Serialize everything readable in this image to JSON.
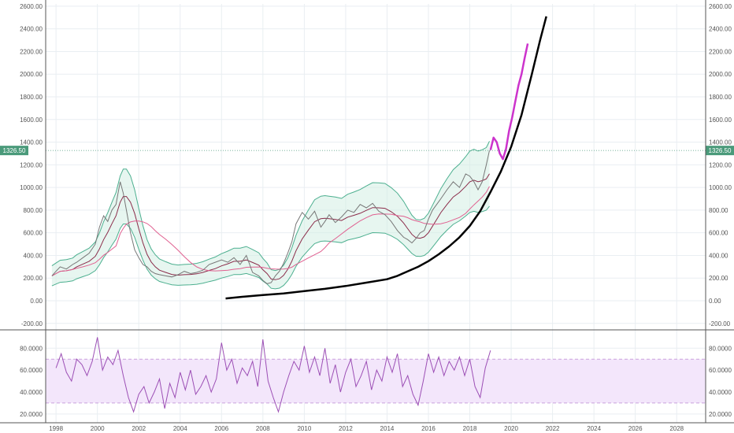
{
  "chart_data": [
    {
      "type": "line",
      "role": "price",
      "xlim": [
        1997.5,
        2029.4
      ],
      "ylim": [
        -250,
        2620
      ],
      "y_ticks": [
        "2600.00",
        "2400.00",
        "2200.00",
        "2000.00",
        "1800.00",
        "1600.00",
        "1400.00",
        "1200.00",
        "1000.00",
        "800.00",
        "600.00",
        "400.00",
        "200.00",
        "0.00",
        "-200.00"
      ],
      "y_tick_values": [
        2600,
        2400,
        2200,
        2000,
        1800,
        1600,
        1400,
        1200,
        1000,
        800,
        600,
        400,
        200,
        0,
        -200
      ],
      "x_ticks": [
        "1998",
        "2000",
        "2002",
        "2004",
        "2006",
        "2008",
        "2010",
        "2012",
        "2014",
        "2016",
        "2018",
        "2020",
        "2022",
        "2024",
        "2026",
        "2028"
      ],
      "x_tick_values": [
        1998,
        2000,
        2002,
        2004,
        2006,
        2008,
        2010,
        2012,
        2014,
        2016,
        2018,
        2020,
        2022,
        2024,
        2026,
        2028
      ],
      "last_price": {
        "label": "1326.50",
        "value": 1326.5
      },
      "grid": true,
      "colors": {
        "price": "#777777",
        "band": "#4caf8f",
        "band_fill": "#d4eee4",
        "ma_fast": "#8b2c4a",
        "ma_slow": "#e06090",
        "trend": "#000000",
        "projection": "#cc33cc",
        "last_price": "#4a9a7a"
      },
      "series": [
        {
          "role": "price",
          "x": [
            1997.8,
            1998.0,
            1998.2,
            1998.5,
            1998.8,
            1999.0,
            1999.3,
            1999.6,
            1999.9,
            2000.1,
            2000.3,
            2000.5,
            2000.7,
            2000.9,
            2001.0,
            2001.1,
            2001.25,
            2001.4,
            2001.6,
            2001.8,
            2002.0,
            2002.2,
            2002.4,
            2002.6,
            2002.8,
            2003.0,
            2003.3,
            2003.6,
            2003.9,
            2004.2,
            2004.5,
            2004.8,
            2005.1,
            2005.4,
            2005.7,
            2006.0,
            2006.3,
            2006.6,
            2006.9,
            2007.2,
            2007.5,
            2007.8,
            2008.0,
            2008.2,
            2008.4,
            2008.6,
            2008.8,
            2009.0,
            2009.2,
            2009.4,
            2009.6,
            2009.9,
            2010.2,
            2010.5,
            2010.8,
            2011.0,
            2011.2,
            2011.5,
            2011.8,
            2012.1,
            2012.4,
            2012.7,
            2013.0,
            2013.3,
            2013.6,
            2013.9,
            2014.2,
            2014.5,
            2014.8,
            2015.0,
            2015.2,
            2015.4,
            2015.6,
            2015.8,
            2016.0,
            2016.2,
            2016.4,
            2016.6,
            2016.9,
            2017.2,
            2017.5,
            2017.8,
            2018.0,
            2018.2,
            2018.4,
            2018.6,
            2018.8,
            2018.95
          ],
          "y": [
            220,
            260,
            300,
            280,
            320,
            340,
            380,
            420,
            500,
            650,
            750,
            700,
            800,
            850,
            950,
            1050,
            950,
            800,
            600,
            450,
            380,
            320,
            300,
            260,
            240,
            230,
            220,
            210,
            230,
            260,
            240,
            250,
            270,
            320,
            340,
            360,
            340,
            380,
            320,
            400,
            250,
            220,
            180,
            150,
            160,
            220,
            260,
            330,
            420,
            520,
            680,
            780,
            720,
            790,
            650,
            700,
            760,
            690,
            740,
            800,
            780,
            850,
            820,
            860,
            790,
            760,
            700,
            620,
            560,
            540,
            510,
            550,
            600,
            620,
            720,
            800,
            850,
            900,
            980,
            1050,
            1000,
            1120,
            1100,
            1050,
            980,
            1050,
            1200,
            1326.5
          ]
        },
        {
          "role": "trend",
          "x": [
            2006.2,
            2007.0,
            2008.0,
            2009.0,
            2010.0,
            2011.0,
            2012.0,
            2013.0,
            2014.0,
            2014.5,
            2015.0,
            2015.5,
            2016.0,
            2016.5,
            2017.0,
            2017.5,
            2018.0,
            2018.5,
            2019.0,
            2019.5,
            2020.0,
            2020.5,
            2021.0,
            2021.4,
            2021.7
          ],
          "y": [
            20,
            35,
            50,
            65,
            85,
            105,
            130,
            160,
            190,
            220,
            260,
            300,
            350,
            410,
            480,
            560,
            660,
            790,
            960,
            1140,
            1360,
            1640,
            2000,
            2300,
            2510
          ]
        },
        {
          "role": "projection",
          "x": [
            2019.0,
            2019.15,
            2019.3,
            2019.45,
            2019.6,
            2019.75,
            2019.9,
            2020.05,
            2020.2,
            2020.35,
            2020.5,
            2020.65,
            2020.8
          ],
          "y": [
            1330,
            1440,
            1400,
            1300,
            1250,
            1340,
            1500,
            1620,
            1760,
            1900,
            2000,
            2140,
            2270
          ]
        }
      ]
    },
    {
      "type": "line",
      "role": "oscillator",
      "ylim": [
        12,
        96
      ],
      "y_ticks": [
        "80.0000",
        "60.0000",
        "40.0000",
        "20.0000"
      ],
      "y_tick_values": [
        80,
        60,
        40,
        20
      ],
      "band": [
        30,
        70
      ],
      "colors": {
        "line": "#9c4fb5",
        "band_fill": "#f3e6fb",
        "band_edge": "#c9a2dc"
      },
      "series": [
        {
          "role": "oscillator",
          "x": [
            1998.0,
            1998.25,
            1998.5,
            1998.75,
            1999.0,
            1999.25,
            1999.5,
            1999.75,
            2000.0,
            2000.25,
            2000.5,
            2000.75,
            2001.0,
            2001.25,
            2001.5,
            2001.75,
            2002.0,
            2002.25,
            2002.5,
            2002.75,
            2003.0,
            2003.25,
            2003.5,
            2003.75,
            2004.0,
            2004.25,
            2004.5,
            2004.75,
            2005.0,
            2005.25,
            2005.5,
            2005.75,
            2006.0,
            2006.25,
            2006.5,
            2006.75,
            2007.0,
            2007.25,
            2007.5,
            2007.75,
            2008.0,
            2008.25,
            2008.5,
            2008.75,
            2009.0,
            2009.25,
            2009.5,
            2009.75,
            2010.0,
            2010.25,
            2010.5,
            2010.75,
            2011.0,
            2011.25,
            2011.5,
            2011.75,
            2012.0,
            2012.25,
            2012.5,
            2012.75,
            2013.0,
            2013.25,
            2013.5,
            2013.75,
            2014.0,
            2014.25,
            2014.5,
            2014.75,
            2015.0,
            2015.25,
            2015.5,
            2015.75,
            2016.0,
            2016.25,
            2016.5,
            2016.75,
            2017.0,
            2017.25,
            2017.5,
            2017.75,
            2018.0,
            2018.25,
            2018.5,
            2018.75,
            2019.0
          ],
          "y": [
            62,
            75,
            58,
            50,
            70,
            65,
            55,
            68,
            90,
            60,
            72,
            65,
            78,
            55,
            35,
            22,
            38,
            45,
            30,
            40,
            52,
            25,
            48,
            35,
            58,
            42,
            60,
            38,
            45,
            55,
            40,
            52,
            85,
            60,
            70,
            48,
            62,
            55,
            68,
            45,
            88,
            50,
            35,
            22,
            40,
            55,
            68,
            60,
            82,
            58,
            72,
            55,
            80,
            48,
            65,
            40,
            58,
            70,
            45,
            55,
            68,
            42,
            60,
            50,
            72,
            58,
            75,
            45,
            55,
            38,
            28,
            50,
            75,
            58,
            72,
            55,
            68,
            60,
            72,
            55,
            70,
            45,
            35,
            62,
            78
          ]
        }
      ]
    }
  ]
}
